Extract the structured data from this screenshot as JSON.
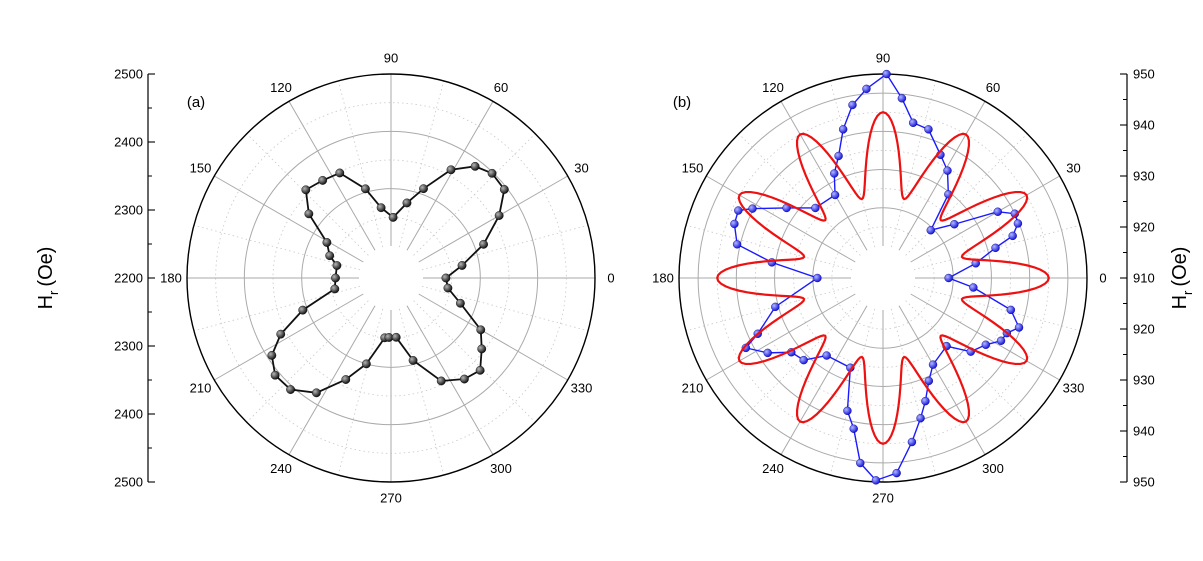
{
  "chart_data": [
    {
      "type": "scatter",
      "subtype": "polar",
      "panel_label": "(a)",
      "radial_axis_label": "H",
      "radial_axis_label_sub": "r",
      "radial_axis_label_unit": "(Oe)",
      "axis_side": "left",
      "radial_range_center_to_edge": [
        2200,
        2500
      ],
      "radial_ticks": [
        "2500",
        "2400",
        "2300",
        "2200",
        "2300",
        "2400",
        "2500"
      ],
      "angle_ticks": [
        "0",
        "30",
        "60",
        "90",
        "120",
        "150",
        "180",
        "210",
        "240",
        "270",
        "300",
        "330"
      ],
      "grid": true,
      "series": [
        {
          "color": "#111111",
          "marker": "sphere",
          "line": "solid",
          "points": [
            {
              "angle": 0,
              "value": 2240
            },
            {
              "angle": 10,
              "value": 2270
            },
            {
              "angle": 20,
              "value": 2316
            },
            {
              "angle": 30,
              "value": 2362
            },
            {
              "angle": 38,
              "value": 2395
            },
            {
              "angle": 46,
              "value": 2398
            },
            {
              "angle": 53,
              "value": 2388
            },
            {
              "angle": 61,
              "value": 2360
            },
            {
              "angle": 70,
              "value": 2310
            },
            {
              "angle": 78,
              "value": 2278
            },
            {
              "angle": 88,
              "value": 2250
            },
            {
              "angle": 98,
              "value": 2268
            },
            {
              "angle": 106,
              "value": 2306
            },
            {
              "angle": 116,
              "value": 2348
            },
            {
              "angle": 125,
              "value": 2352
            },
            {
              "angle": 134,
              "value": 2358
            },
            {
              "angle": 142,
              "value": 2326
            },
            {
              "angle": 151,
              "value": 2272
            },
            {
              "angle": 160,
              "value": 2258
            },
            {
              "angle": 167,
              "value": 2241
            },
            {
              "angle": 180,
              "value": 2241
            },
            {
              "angle": 191,
              "value": 2244
            },
            {
              "angle": 200,
              "value": 2308
            },
            {
              "angle": 207,
              "value": 2360
            },
            {
              "angle": 213,
              "value": 2392
            },
            {
              "angle": 220,
              "value": 2408
            },
            {
              "angle": 228,
              "value": 2406
            },
            {
              "angle": 237,
              "value": 2383
            },
            {
              "angle": 246,
              "value": 2338
            },
            {
              "angle": 254,
              "value": 2300
            },
            {
              "angle": 264,
              "value": 2249
            },
            {
              "angle": 268,
              "value": 2248
            },
            {
              "angle": 275,
              "value": 2248
            },
            {
              "angle": 285,
              "value": 2293
            },
            {
              "angle": 296,
              "value": 2344
            },
            {
              "angle": 306,
              "value": 2362
            },
            {
              "angle": 314,
              "value": 2368
            },
            {
              "angle": 322,
              "value": 2345
            },
            {
              "angle": 330,
              "value": 2325
            },
            {
              "angle": 340,
              "value": 2273
            },
            {
              "angle": 350,
              "value": 2245
            }
          ]
        }
      ]
    },
    {
      "type": "scatter",
      "subtype": "polar",
      "panel_label": "(b)",
      "radial_axis_label": "H",
      "radial_axis_label_sub": "r",
      "radial_axis_label_unit": "(Oe)",
      "axis_side": "right",
      "radial_range_center_to_edge": [
        910,
        955
      ],
      "radial_ticks": [
        "950",
        "940",
        "930",
        "920",
        "910",
        "920",
        "930",
        "940",
        "950"
      ],
      "angle_ticks": [
        "0",
        "30",
        "60",
        "90",
        "120",
        "150",
        "180",
        "210",
        "240",
        "270",
        "300",
        "330"
      ],
      "grid": true,
      "series": [
        {
          "color": "#1a1aff",
          "marker": "sphere",
          "line": "solid",
          "points": [
            {
              "angle": 0,
              "value": 918.8
            },
            {
              "angle": 9,
              "value": 926.2
            },
            {
              "angle": 15,
              "value": 932.1
            },
            {
              "angle": 18,
              "value": 937.3
            },
            {
              "angle": 22,
              "value": 939.7
            },
            {
              "angle": 26,
              "value": 940.0
            },
            {
              "angle": 30,
              "value": 936.3
            },
            {
              "angle": 37,
              "value": 925.0
            },
            {
              "angle": 45,
              "value": 919.3
            },
            {
              "angle": 52,
              "value": 929.4
            },
            {
              "angle": 59,
              "value": 934.4
            },
            {
              "angle": 65,
              "value": 937.2
            },
            {
              "angle": 73,
              "value": 942.3
            },
            {
              "angle": 79,
              "value": 943.0
            },
            {
              "angle": 84,
              "value": 948.9
            },
            {
              "angle": 89,
              "value": 955.0
            },
            {
              "angle": 95,
              "value": 951.3
            },
            {
              "angle": 100,
              "value": 947.6
            },
            {
              "angle": 105,
              "value": 941.9
            },
            {
              "angle": 110,
              "value": 935.6
            },
            {
              "angle": 115,
              "value": 931.8
            },
            {
              "angle": 120,
              "value": 926.7
            },
            {
              "angle": 134,
              "value": 927.1
            },
            {
              "angle": 144,
              "value": 932.8
            },
            {
              "angle": 152,
              "value": 940.3
            },
            {
              "angle": 155,
              "value": 943.4
            },
            {
              "angle": 160,
              "value": 943.0
            },
            {
              "angle": 167,
              "value": 940.8
            },
            {
              "angle": 172,
              "value": 931.0
            },
            {
              "angle": 180,
              "value": 918.8
            },
            {
              "angle": 195,
              "value": 930.8
            },
            {
              "angle": 204,
              "value": 937.5
            },
            {
              "angle": 207,
              "value": 941.9
            },
            {
              "angle": 213,
              "value": 937.6
            },
            {
              "angle": 219,
              "value": 932.5
            },
            {
              "angle": 226,
              "value": 931.5
            },
            {
              "angle": 234,
              "value": 926.7
            },
            {
              "angle": 250,
              "value": 926.6
            },
            {
              "angle": 255,
              "value": 937.6
            },
            {
              "angle": 259,
              "value": 941.8
            },
            {
              "angle": 263,
              "value": 950.4
            },
            {
              "angle": 268,
              "value": 954.6
            },
            {
              "angle": 274,
              "value": 952.8
            },
            {
              "angle": 280,
              "value": 945.2
            },
            {
              "angle": 285,
              "value": 939.6
            },
            {
              "angle": 289,
              "value": 935.7
            },
            {
              "angle": 294,
              "value": 931.1
            },
            {
              "angle": 300,
              "value": 927.8
            },
            {
              "angle": 313,
              "value": 926.0
            },
            {
              "angle": 320,
              "value": 931.6
            },
            {
              "angle": 327,
              "value": 933.7
            },
            {
              "angle": 332,
              "value": 936.6
            },
            {
              "angle": 336,
              "value": 937.1
            },
            {
              "angle": 340,
              "value": 939.5
            },
            {
              "angle": 346,
              "value": 936.1
            },
            {
              "angle": 354,
              "value": 925.4
            }
          ]
        },
        {
          "color": "#ee1111",
          "line": "solid",
          "marker": "none",
          "kind": "fit curve",
          "function": {
            "form": "base + amp * cos(6*(angle - 90))^2",
            "base": 923,
            "amp": 22
          }
        }
      ]
    }
  ]
}
